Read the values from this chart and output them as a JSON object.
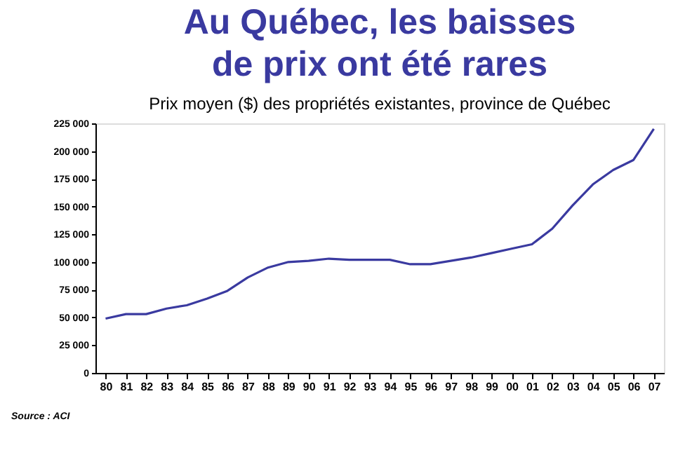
{
  "chart_data": {
    "type": "line",
    "title": "Au Québec, les baisses\nde prix ont été rares",
    "subtitle": "Prix moyen ($) des propriétés existantes, province de Québec",
    "categories": [
      "80",
      "81",
      "82",
      "83",
      "84",
      "85",
      "86",
      "87",
      "88",
      "89",
      "90",
      "91",
      "92",
      "93",
      "94",
      "95",
      "96",
      "97",
      "98",
      "99",
      "00",
      "01",
      "02",
      "03",
      "04",
      "05",
      "06",
      "07"
    ],
    "series": [
      {
        "color": "#3a3aa0",
        "values": [
          49000,
          53000,
          53000,
          58000,
          61000,
          67000,
          74000,
          86000,
          95000,
          100000,
          101000,
          103000,
          102000,
          102000,
          102000,
          98000,
          98000,
          101000,
          104000,
          108000,
          112000,
          116000,
          130000,
          151000,
          170000,
          183000,
          192000,
          220000
        ]
      }
    ],
    "ylim": [
      0,
      225000
    ],
    "yticks": [
      {
        "value": 0,
        "label": "0"
      },
      {
        "value": 25000,
        "label": "25 000"
      },
      {
        "value": 50000,
        "label": "50 000"
      },
      {
        "value": 75000,
        "label": "75 000"
      },
      {
        "value": 100000,
        "label": "100 000"
      },
      {
        "value": 125000,
        "label": "125 000"
      },
      {
        "value": 150000,
        "label": "150 000"
      },
      {
        "value": 175000,
        "label": "175 000"
      },
      {
        "value": 200000,
        "label": "200 000"
      },
      {
        "value": 225000,
        "label": "225 000"
      }
    ],
    "grid": false,
    "legend": false,
    "marker": "none",
    "line_style": "solid",
    "annotations": [
      "Source : ACI"
    ]
  }
}
